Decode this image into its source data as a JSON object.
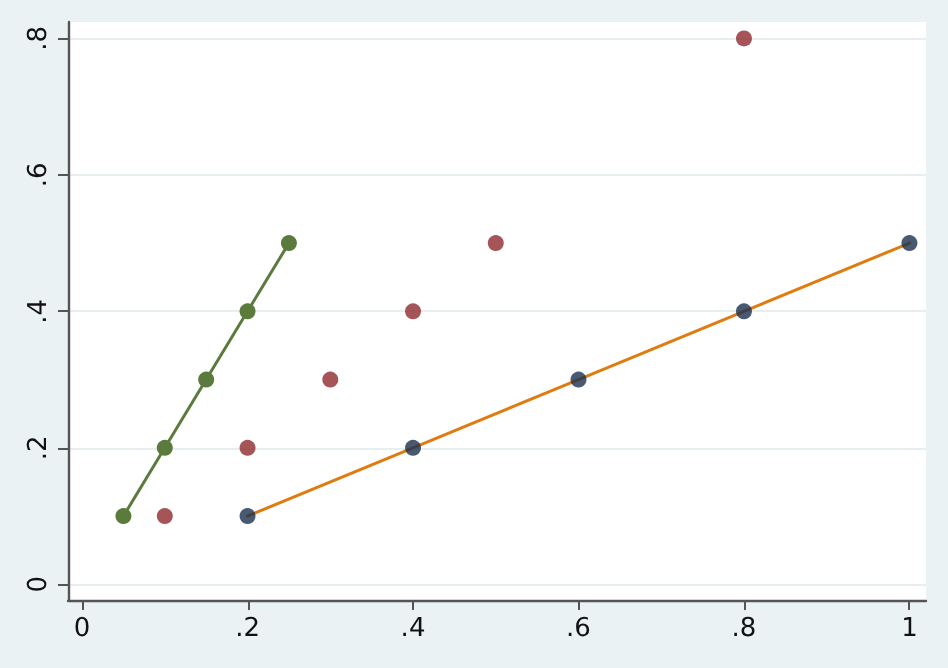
{
  "chart_data": {
    "type": "scatter",
    "xlim": [
      -0.017,
      1.02
    ],
    "ylim": [
      -0.023,
      0.824
    ],
    "xticks": [
      0,
      {
        "value": 0.2,
        "label": ".2"
      },
      {
        "value": 0.4,
        "label": ".4"
      },
      {
        "value": 0.6,
        "label": ".6"
      },
      {
        "value": 0.8,
        "label": ".8"
      },
      1
    ],
    "yticks": [
      0,
      {
        "value": 0.2,
        "label": ".2"
      },
      {
        "value": 0.4,
        "label": ".4"
      },
      {
        "value": 0.6,
        "label": ".6"
      },
      {
        "value": 0.8,
        "label": ".8"
      }
    ],
    "grid": "y",
    "series": [
      {
        "type": "line",
        "color": "#5b7b3c",
        "marker": "circle",
        "line_style": "solid",
        "x": [
          0.05,
          0.1,
          0.15,
          0.2,
          0.25
        ],
        "values": [
          0.1,
          0.2,
          0.3,
          0.4,
          0.5
        ]
      },
      {
        "color": "#8e2a2e",
        "marker": "circle",
        "x": [
          0.1,
          0.2,
          0.3,
          0.4,
          0.5,
          0.8
        ],
        "values": [
          0.1,
          0.2,
          0.3,
          0.4,
          0.5,
          0.8
        ]
      },
      {
        "type": "line",
        "color": "#e07b10",
        "marker": "none",
        "line_style": "solid",
        "x": [
          0.2,
          0.4,
          0.6,
          0.8,
          1
        ],
        "values": [
          0.1,
          0.2,
          0.3,
          0.4,
          0.5
        ]
      },
      {
        "color": "#1a2f4f",
        "marker": "circle",
        "x": [
          0.2,
          0.4,
          0.6,
          0.8,
          1
        ],
        "values": [
          0.1,
          0.2,
          0.3,
          0.4,
          0.5
        ]
      }
    ]
  }
}
